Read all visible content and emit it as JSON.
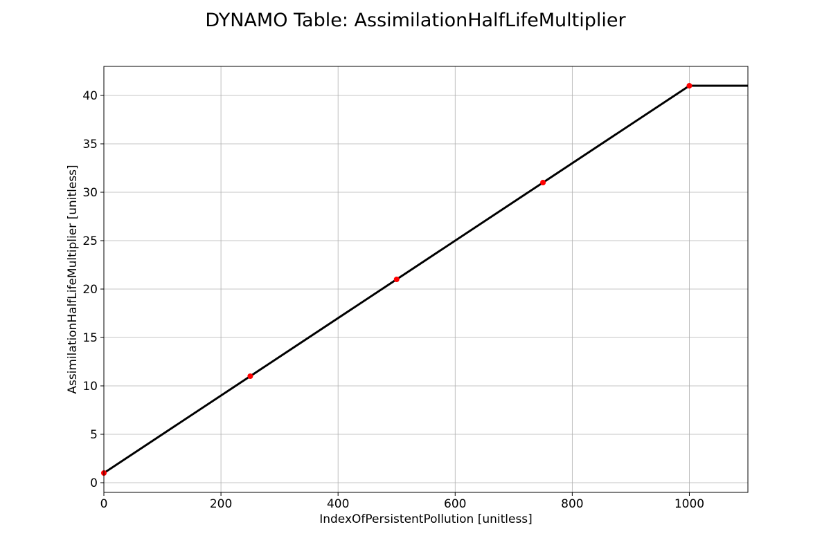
{
  "chart_data": {
    "type": "line",
    "title": "DYNAMO Table: AssimilationHalfLifeMultiplier",
    "xlabel": "IndexOfPersistentPollution [unitless]",
    "ylabel": "AssimilationHalfLifeMultiplier [unitless]",
    "xlim": [
      0,
      1100
    ],
    "ylim": [
      -1,
      43
    ],
    "x_ticks": [
      0,
      200,
      400,
      600,
      800,
      1000
    ],
    "y_ticks": [
      0,
      5,
      10,
      15,
      20,
      25,
      30,
      35,
      40
    ],
    "grid": true,
    "legend": "none",
    "series": [
      {
        "kind": "line",
        "color": "#000000",
        "x": [
          0,
          250,
          500,
          750,
          1000,
          1100
        ],
        "y": [
          1,
          11,
          21,
          31,
          41,
          41
        ]
      },
      {
        "kind": "points",
        "color": "#ff0000",
        "x": [
          0,
          250,
          500,
          750,
          1000
        ],
        "y": [
          1,
          11,
          21,
          31,
          41
        ]
      }
    ]
  }
}
